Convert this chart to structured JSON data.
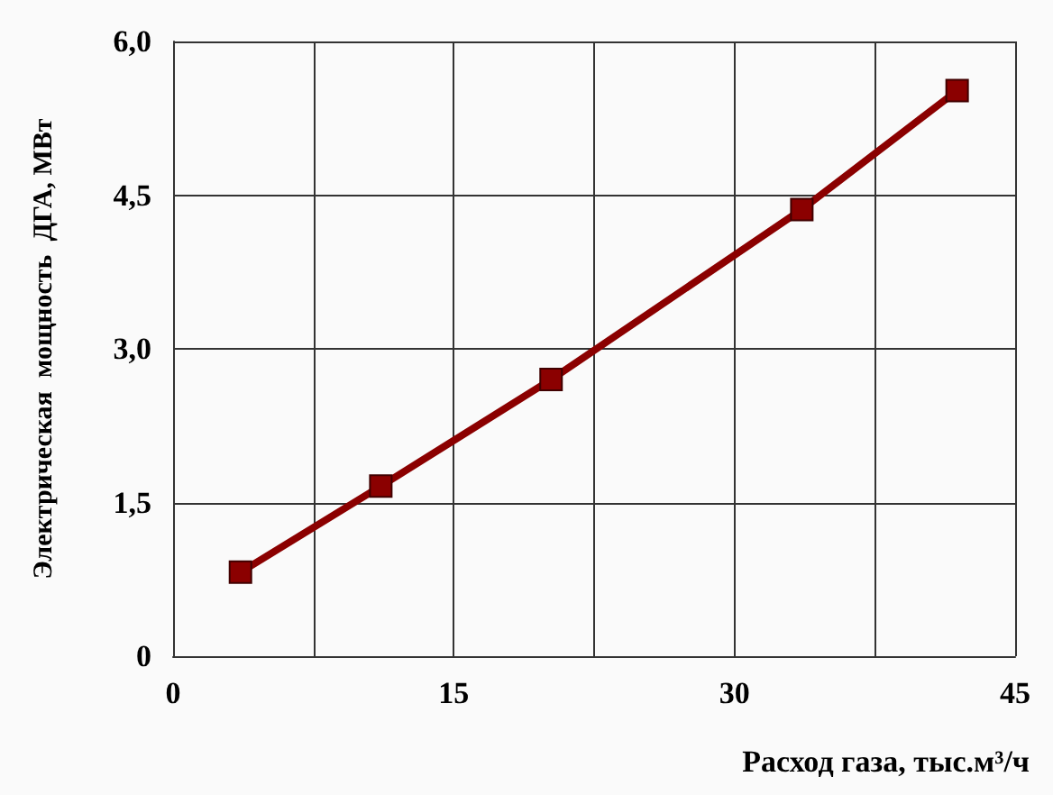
{
  "chart_data": {
    "type": "line",
    "xlabel": "Расход газа, тыс.м³/ч",
    "ylabel": "Электрическая  мощность  ДГА, МВт",
    "x": [
      3.6,
      11.1,
      20.2,
      33.6,
      41.9
    ],
    "series": [
      {
        "color": "#8b0000",
        "values": [
          0.82,
          1.66,
          2.7,
          4.36,
          5.52
        ]
      }
    ],
    "xlim": [
      0,
      45
    ],
    "xticks": [
      0,
      {
        "value": 7.5,
        "label": null
      },
      15,
      {
        "value": 22.5,
        "label": null
      },
      30,
      {
        "value": 37.5,
        "label": null
      },
      45
    ],
    "ylim": [
      0,
      6
    ],
    "yticks": [
      0,
      {
        "value": 1.5,
        "label": "1,5"
      },
      {
        "value": 3,
        "label": "3,0"
      },
      {
        "value": 4.5,
        "label": "4,5"
      },
      {
        "value": 6,
        "label": "6,0"
      }
    ],
    "grid": true,
    "marker": "square",
    "line_style": "solid"
  }
}
